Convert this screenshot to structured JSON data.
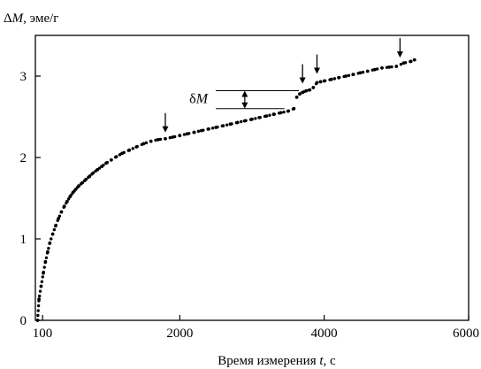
{
  "chart_data": {
    "type": "scatter",
    "ylabel_prefix": "Δ",
    "ylabel_symbol": "M",
    "ylabel_units": ", эме/г",
    "xlabel_text": "Время измерения ",
    "xlabel_symbol": "t",
    "xlabel_units": ", с",
    "xlim": [
      0,
      6000
    ],
    "ylim": [
      0,
      3.5
    ],
    "x_ticks": [
      100,
      2000,
      4000,
      6000
    ],
    "y_ticks": [
      0,
      1,
      2,
      3
    ],
    "grid": false,
    "annotation": {
      "label_prefix": "δ",
      "label_symbol": "M",
      "bracket_x": 2900,
      "y_low": 2.6,
      "y_high": 2.82,
      "line_x_start": 2500,
      "line_x_end": 3650
    },
    "step_arrows": [
      {
        "x": 1800,
        "y": 2.22
      },
      {
        "x": 3700,
        "y": 2.82
      },
      {
        "x": 3900,
        "y": 2.94
      },
      {
        "x": 5050,
        "y": 3.14
      }
    ],
    "series": [
      {
        "segments": [
          {
            "x": [
              30,
              50,
              80,
              110,
              140,
              170,
              200,
              240,
              280,
              320,
              360,
              400,
              440,
              480,
              520,
              560,
              600,
              650,
              700,
              750,
              800,
              860,
              920,
              980,
              1050,
              1120,
              1200,
              1300,
              1400,
              1500,
              1600,
              1700,
              1800,
              1900,
              2000,
              2100,
              2200,
              2300,
              2400,
              2500,
              2600,
              2700,
              2800,
              2900,
              3000,
              3100,
              3200,
              3300,
              3400,
              3500,
              3580
            ],
            "y": [
              0.0,
              0.26,
              0.42,
              0.58,
              0.72,
              0.84,
              0.95,
              1.06,
              1.16,
              1.25,
              1.33,
              1.4,
              1.46,
              1.52,
              1.57,
              1.61,
              1.65,
              1.69,
              1.73,
              1.77,
              1.81,
              1.85,
              1.89,
              1.93,
              1.97,
              2.01,
              2.05,
              2.09,
              2.13,
              2.17,
              2.2,
              2.22,
              2.23,
              2.25,
              2.27,
              2.29,
              2.31,
              2.33,
              2.35,
              2.37,
              2.39,
              2.41,
              2.43,
              2.45,
              2.47,
              2.49,
              2.51,
              2.53,
              2.55,
              2.57,
              2.6
            ]
          },
          {
            "x": [
              3620,
              3660,
              3700,
              3750,
              3800,
              3850,
              3900,
              3950,
              4000,
              4100,
              4200,
              4300,
              4400,
              4500,
              4600,
              4700,
              4800,
              4900,
              5000,
              5100,
              5200,
              5250
            ],
            "y": [
              2.74,
              2.78,
              2.8,
              2.82,
              2.83,
              2.86,
              2.92,
              2.93,
              2.94,
              2.96,
              2.98,
              3.0,
              3.02,
              3.04,
              3.06,
              3.08,
              3.1,
              3.11,
              3.12,
              3.16,
              3.18,
              3.2
            ]
          }
        ]
      }
    ]
  }
}
